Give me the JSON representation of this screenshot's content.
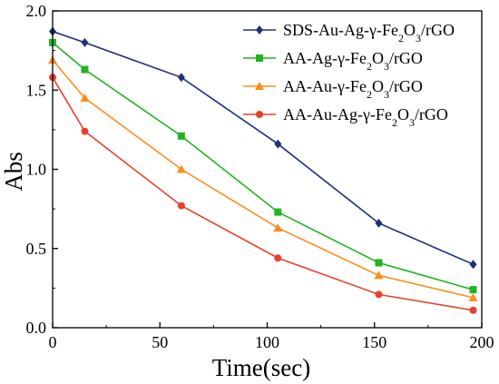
{
  "chart_data": {
    "type": "line",
    "title": "",
    "xlabel": "Time(sec)",
    "ylabel": "Abs",
    "xlim": [
      0,
      200
    ],
    "ylim": [
      0.0,
      2.0
    ],
    "xticks": [
      0,
      50,
      100,
      150,
      200
    ],
    "xtick_labels": [
      "0",
      "50",
      "100",
      "150",
      "200"
    ],
    "yticks": [
      0.0,
      0.5,
      1.0,
      1.5,
      2.0
    ],
    "ytick_labels": [
      "0.0",
      "0.5",
      "1.0",
      "1.5",
      "2.0"
    ],
    "grid": false,
    "legend_position": "top-right",
    "series": [
      {
        "name_parts": [
          {
            "text": "SDS-Au-Ag-γ-Fe",
            "sub": false
          },
          {
            "text": "2",
            "sub": true
          },
          {
            "text": "O",
            "sub": false
          },
          {
            "text": "3",
            "sub": true
          },
          {
            "text": "/rGO",
            "sub": false
          }
        ],
        "color": "#1f2f7f",
        "marker": "diamond",
        "x": [
          0,
          15,
          60,
          105,
          152,
          196
        ],
        "y": [
          1.87,
          1.8,
          1.58,
          1.16,
          0.66,
          0.4
        ]
      },
      {
        "name_parts": [
          {
            "text": "AA-Ag-γ-Fe",
            "sub": false
          },
          {
            "text": "2",
            "sub": true
          },
          {
            "text": "O",
            "sub": false
          },
          {
            "text": "3",
            "sub": true
          },
          {
            "text": "/rGO",
            "sub": false
          }
        ],
        "color": "#22b422",
        "marker": "square",
        "x": [
          0,
          15,
          60,
          105,
          152,
          196
        ],
        "y": [
          1.8,
          1.63,
          1.21,
          0.73,
          0.41,
          0.24
        ]
      },
      {
        "name_parts": [
          {
            "text": "AA-Au-γ-Fe",
            "sub": false
          },
          {
            "text": "2",
            "sub": true
          },
          {
            "text": "O",
            "sub": false
          },
          {
            "text": "3",
            "sub": true
          },
          {
            "text": "/rGO",
            "sub": false
          }
        ],
        "color": "#ff8c1a",
        "marker": "triangle",
        "x": [
          0,
          15,
          60,
          105,
          152,
          196
        ],
        "y": [
          1.69,
          1.45,
          1.0,
          0.63,
          0.33,
          0.19
        ]
      },
      {
        "name_parts": [
          {
            "text": "AA-Au-Ag-γ-Fe",
            "sub": false
          },
          {
            "text": "2",
            "sub": true
          },
          {
            "text": "O",
            "sub": false
          },
          {
            "text": "3",
            "sub": true
          },
          {
            "text": "/rGO",
            "sub": false
          }
        ],
        "color": "#e8402a",
        "marker": "circle",
        "x": [
          0,
          15,
          60,
          105,
          152,
          196
        ],
        "y": [
          1.58,
          1.24,
          0.77,
          0.44,
          0.21,
          0.11
        ]
      }
    ]
  }
}
